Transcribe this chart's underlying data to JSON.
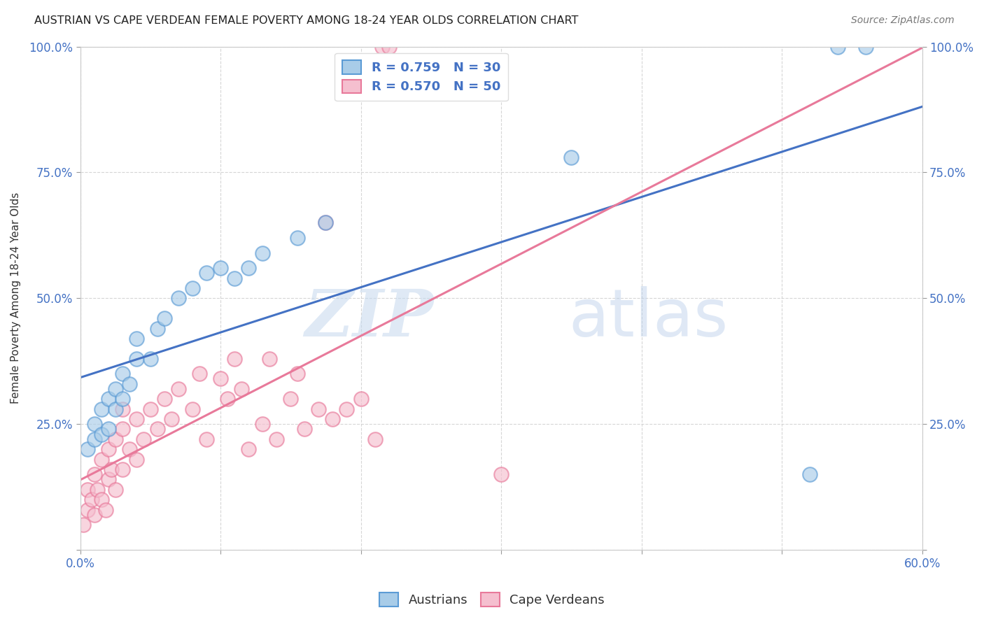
{
  "title": "AUSTRIAN VS CAPE VERDEAN FEMALE POVERTY AMONG 18-24 YEAR OLDS CORRELATION CHART",
  "source": "Source: ZipAtlas.com",
  "ylabel": "Female Poverty Among 18-24 Year Olds",
  "xlim": [
    0.0,
    0.6
  ],
  "ylim": [
    0.0,
    1.0
  ],
  "xticks": [
    0.0,
    0.1,
    0.2,
    0.3,
    0.4,
    0.5,
    0.6
  ],
  "xticklabels": [
    "0.0%",
    "",
    "",
    "",
    "",
    "",
    "60.0%"
  ],
  "yticks": [
    0.0,
    0.25,
    0.5,
    0.75,
    1.0
  ],
  "yticklabels_left": [
    "",
    "25.0%",
    "50.0%",
    "75.0%",
    "100.0%"
  ],
  "yticklabels_right": [
    "",
    "25.0%",
    "50.0%",
    "75.0%",
    "100.0%"
  ],
  "blue_R": 0.759,
  "blue_N": 30,
  "pink_R": 0.57,
  "pink_N": 50,
  "blue_color": "#a8cce8",
  "pink_color": "#f5bfcf",
  "blue_edge_color": "#5b9bd5",
  "pink_edge_color": "#e8799a",
  "blue_line_color": "#4472c4",
  "pink_line_color": "#e8799a",
  "watermark_zip": "ZIP",
  "watermark_atlas": "atlas",
  "background_color": "#ffffff",
  "blue_scatter_x": [
    0.005,
    0.01,
    0.01,
    0.015,
    0.015,
    0.02,
    0.02,
    0.025,
    0.025,
    0.03,
    0.03,
    0.035,
    0.04,
    0.04,
    0.05,
    0.055,
    0.06,
    0.07,
    0.08,
    0.09,
    0.1,
    0.11,
    0.12,
    0.13,
    0.155,
    0.175,
    0.35,
    0.52,
    0.54,
    0.56
  ],
  "blue_scatter_y": [
    0.2,
    0.22,
    0.25,
    0.23,
    0.28,
    0.24,
    0.3,
    0.28,
    0.32,
    0.3,
    0.35,
    0.33,
    0.38,
    0.42,
    0.38,
    0.44,
    0.46,
    0.5,
    0.52,
    0.55,
    0.56,
    0.54,
    0.56,
    0.59,
    0.62,
    0.65,
    0.78,
    0.15,
    1.0,
    1.0
  ],
  "pink_scatter_x": [
    0.002,
    0.005,
    0.005,
    0.008,
    0.01,
    0.01,
    0.012,
    0.015,
    0.015,
    0.018,
    0.02,
    0.02,
    0.022,
    0.025,
    0.025,
    0.03,
    0.03,
    0.03,
    0.035,
    0.04,
    0.04,
    0.045,
    0.05,
    0.055,
    0.06,
    0.065,
    0.07,
    0.08,
    0.085,
    0.09,
    0.1,
    0.105,
    0.11,
    0.115,
    0.12,
    0.13,
    0.135,
    0.14,
    0.15,
    0.155,
    0.16,
    0.17,
    0.175,
    0.18,
    0.19,
    0.2,
    0.21,
    0.215,
    0.22,
    0.3
  ],
  "pink_scatter_y": [
    0.05,
    0.08,
    0.12,
    0.1,
    0.07,
    0.15,
    0.12,
    0.1,
    0.18,
    0.08,
    0.14,
    0.2,
    0.16,
    0.12,
    0.22,
    0.16,
    0.24,
    0.28,
    0.2,
    0.18,
    0.26,
    0.22,
    0.28,
    0.24,
    0.3,
    0.26,
    0.32,
    0.28,
    0.35,
    0.22,
    0.34,
    0.3,
    0.38,
    0.32,
    0.2,
    0.25,
    0.38,
    0.22,
    0.3,
    0.35,
    0.24,
    0.28,
    0.65,
    0.26,
    0.28,
    0.3,
    0.22,
    1.0,
    1.0,
    0.15
  ]
}
